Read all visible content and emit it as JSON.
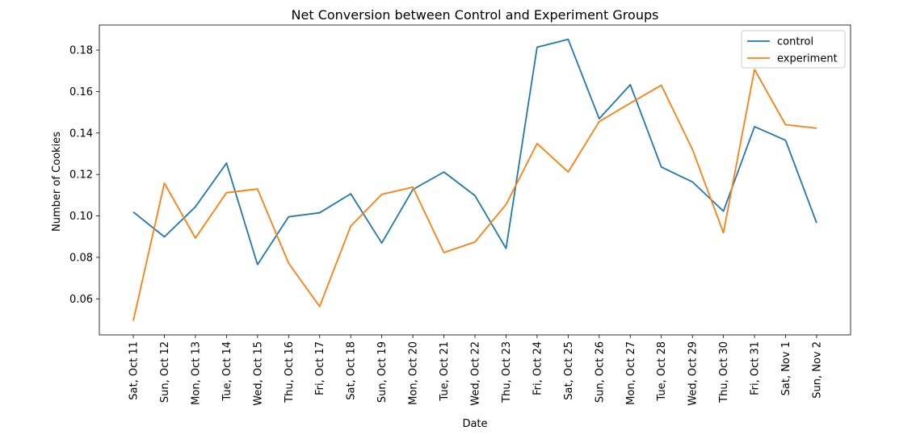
{
  "chart_data": {
    "type": "line",
    "title": "Net Conversion between Control and Experiment Groups",
    "xlabel": "Date",
    "ylabel": "Number of Cookies",
    "categories": [
      "Sat, Oct 11",
      "Sun, Oct 12",
      "Mon, Oct 13",
      "Tue, Oct 14",
      "Wed, Oct 15",
      "Thu, Oct 16",
      "Fri, Oct 17",
      "Sat, Oct 18",
      "Sun, Oct 19",
      "Mon, Oct 20",
      "Tue, Oct 21",
      "Wed, Oct 22",
      "Thu, Oct 23",
      "Fri, Oct 24",
      "Sat, Oct 25",
      "Sun, Oct 26",
      "Mon, Oct 27",
      "Tue, Oct 28",
      "Wed, Oct 29",
      "Thu, Oct 30",
      "Fri, Oct 31",
      "Sat, Nov 1",
      "Sun, Nov 2"
    ],
    "series": [
      {
        "name": "control",
        "color": "#1f77b4",
        "values": [
          0.1019,
          0.0899,
          0.1044,
          0.1255,
          0.0765,
          0.0996,
          0.1015,
          0.1107,
          0.0869,
          0.1127,
          0.1212,
          0.1098,
          0.0843,
          0.1814,
          0.1852,
          0.1469,
          0.1633,
          0.1236,
          0.1164,
          0.1023,
          0.1431,
          0.1365,
          0.0966
        ]
      },
      {
        "name": "experiment",
        "color": "#ff7f0e",
        "values": [
          0.0494,
          0.1158,
          0.0893,
          0.1112,
          0.113,
          0.0772,
          0.0563,
          0.0951,
          0.1104,
          0.1139,
          0.0823,
          0.0874,
          0.1055,
          0.1349,
          0.1212,
          0.1455,
          0.1544,
          0.163,
          0.1321,
          0.0919,
          0.1706,
          0.144,
          0.1423
        ]
      }
    ],
    "yticks": [
      0.06,
      0.08,
      0.1,
      0.12,
      0.14,
      0.16,
      0.18
    ],
    "ytick_labels": [
      "0.06",
      "0.08",
      "0.10",
      "0.12",
      "0.14",
      "0.16",
      "0.18"
    ],
    "ylim": [
      0.0426,
      0.1921
    ],
    "grid": false,
    "legend_position": "top-right"
  }
}
